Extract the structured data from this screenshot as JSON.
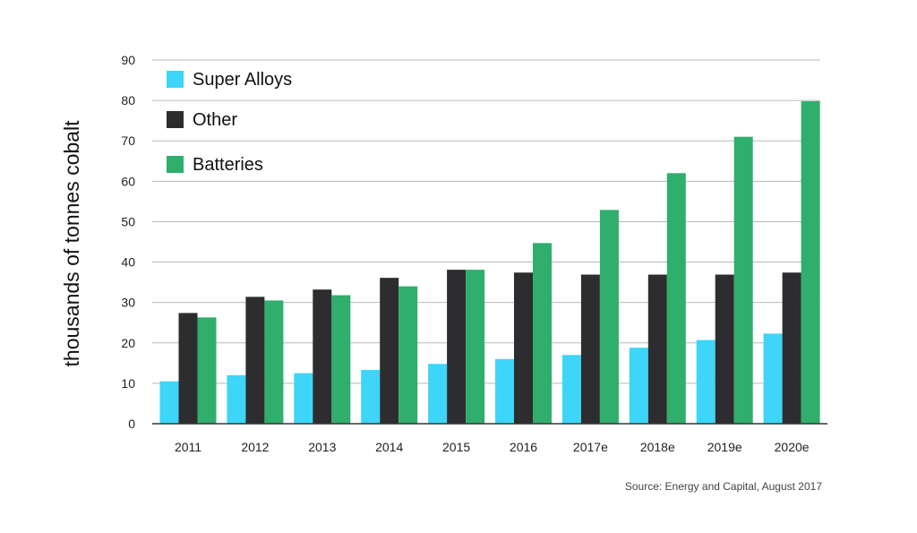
{
  "chart_data": {
    "type": "bar",
    "categories": [
      "2011",
      "2012",
      "2013",
      "2014",
      "2015",
      "2016",
      "2017e",
      "2018e",
      "2019e",
      "2020e"
    ],
    "series": [
      {
        "name": "Super Alloys",
        "color": "#3dd5f8",
        "values": [
          10.5,
          12,
          12.5,
          13.3,
          14.8,
          16,
          17,
          18.8,
          20.7,
          22.3
        ]
      },
      {
        "name": "Other",
        "color": "#2d2d2f",
        "values": [
          27.4,
          31.4,
          33.2,
          36.1,
          38.1,
          37.4,
          36.9,
          36.9,
          36.9,
          37.4
        ]
      },
      {
        "name": "Batteries",
        "color": "#2fae6c",
        "values": [
          26.3,
          30.5,
          31.8,
          34,
          38.1,
          44.7,
          52.9,
          62,
          71,
          79.8
        ]
      }
    ],
    "title": "",
    "xlabel": "",
    "ylabel": "thousands of tonnes cobalt",
    "ylim": [
      0,
      90
    ],
    "yticks": [
      0,
      10,
      20,
      30,
      40,
      50,
      60,
      70,
      80,
      90
    ],
    "grid": true,
    "legend_position": "top-left",
    "source": "Source: Energy and Capital, August 2017"
  }
}
